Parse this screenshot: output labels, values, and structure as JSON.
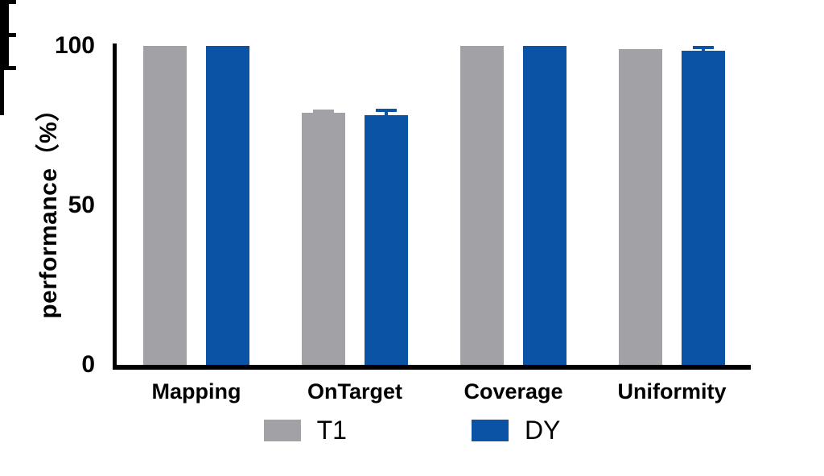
{
  "chart_data": {
    "type": "bar",
    "title": "",
    "categories": [
      "Mapping",
      "OnTarget",
      "Coverage",
      "Uniformity"
    ],
    "series": [
      {
        "name": "T1",
        "color": "#a2a2a6",
        "values": [
          99.9,
          79.0,
          100,
          98.9
        ],
        "errors_plus": [
          0,
          0.6,
          0,
          0
        ]
      },
      {
        "name": "DY",
        "color": "#0a53a5",
        "values": [
          99.9,
          78.2,
          100,
          98.4
        ],
        "errors_plus": [
          0,
          1.5,
          0,
          1.1
        ]
      }
    ],
    "xlabel": "",
    "ylabel": "performance（%）",
    "ylim": [
      0,
      100
    ],
    "yticks_major": [
      0,
      50,
      100
    ],
    "ytick_labels": [
      "0",
      "50",
      "100"
    ],
    "ytick_minor_step": 5,
    "grid": false,
    "legend_position": "bottom",
    "axis_color": "#000000",
    "background": "#ffffff"
  }
}
